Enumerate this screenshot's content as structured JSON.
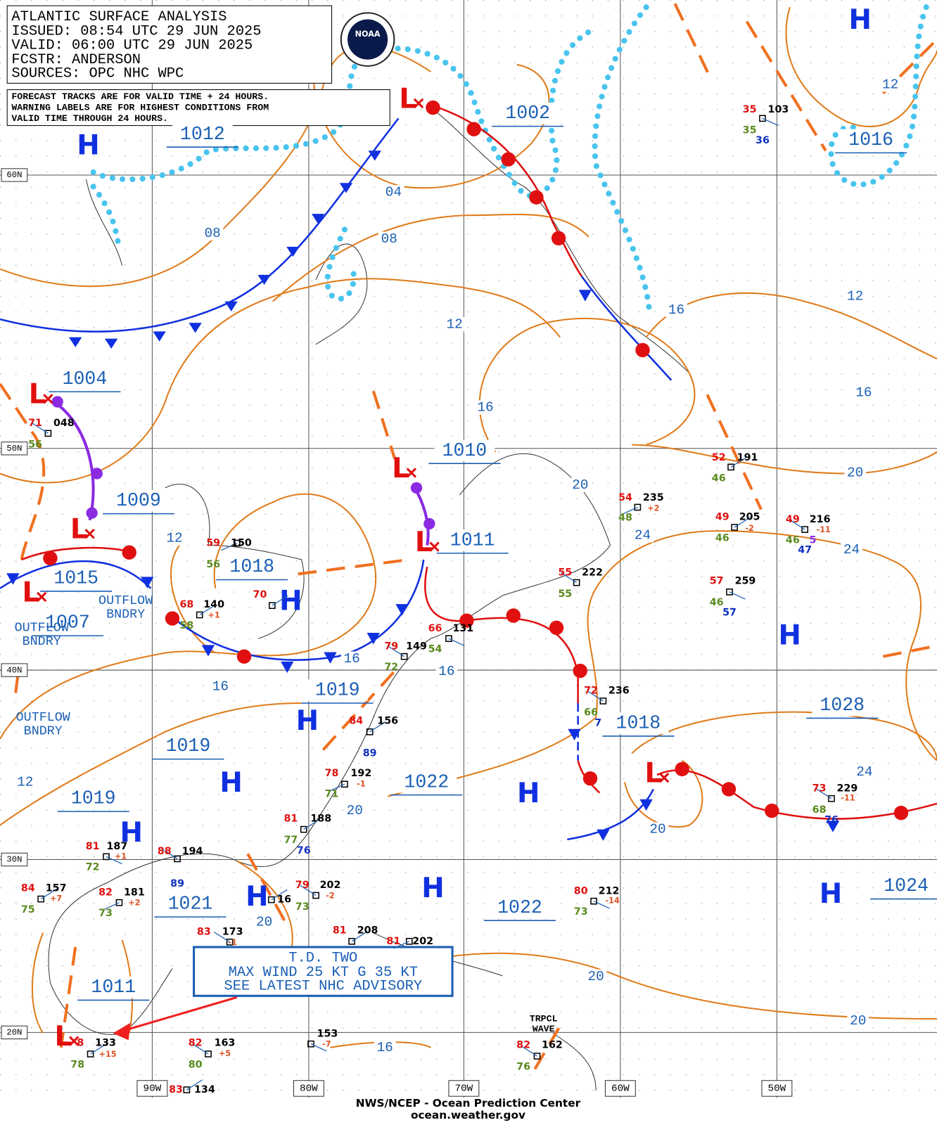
{
  "header": {
    "title": "ATLANTIC SURFACE ANALYSIS",
    "issued": "ISSUED: 08:54 UTC 29 JUN 2025",
    "valid": "VALID:  06:00 UTC 29 JUN 2025",
    "forecaster": "FCSTR:  ANDERSON",
    "sources": "SOURCES: OPC NHC WPC"
  },
  "note": [
    "FORECAST TRACKS ARE FOR VALID TIME + 24 HOURS.",
    "WARNING LABELS ARE FOR HIGHEST CONDITIONS FROM",
    "VALID TIME THROUGH 24 HOURS."
  ],
  "logo": "NOAA",
  "latitude_labels": [
    "60N",
    "50N",
    "40N",
    "30N",
    "20N"
  ],
  "longitude_labels": [
    "90W",
    "80W",
    "70W",
    "60W",
    "50W"
  ],
  "pressure_centers": [
    "1012",
    "1002",
    "1016",
    "1004",
    "1010",
    "1009",
    "1011",
    "1018",
    "1015",
    "1007",
    "1019",
    "1028",
    "1018",
    "1019",
    "1022",
    "1019",
    "1021",
    "1022",
    "1024",
    "1011"
  ],
  "isobar_labels": [
    "04",
    "08",
    "08",
    "12",
    "12",
    "16",
    "16",
    "16",
    "20",
    "12",
    "24",
    "20",
    "24",
    "16",
    "16",
    "16",
    "12",
    "20",
    "24",
    "20",
    "20",
    "20",
    "20",
    "16",
    "12"
  ],
  "highs": [
    "H",
    "H",
    "H",
    "H",
    "H",
    "H",
    "H",
    "H",
    "H",
    "H",
    "H"
  ],
  "lows": [
    "L",
    "L",
    "L",
    "L",
    "L",
    "L",
    "L",
    "L"
  ],
  "boundaries": [
    [
      "OUTFLOW",
      "BNDRY"
    ],
    [
      "OUTFLOW",
      "BNDRY"
    ],
    [
      "OUTFLOW",
      "BNDRY"
    ]
  ],
  "storm_box": [
    "T.D. TWO",
    "MAX WIND 25 KT G 35 KT",
    "SEE LATEST NHC ADVISORY"
  ],
  "tropical_wave": [
    "TRPCL",
    "WAVE"
  ],
  "stations": [
    [
      "35",
      "103",
      "35",
      "36"
    ],
    [
      "71",
      "048",
      "56"
    ],
    [
      "52",
      "191",
      "46"
    ],
    [
      "54",
      "235",
      "48",
      "+2"
    ],
    [
      "49",
      "205",
      "46",
      "-2"
    ],
    [
      "49",
      "216",
      "46",
      "5",
      "47",
      "-11"
    ],
    [
      "57",
      "259",
      "46",
      "57"
    ],
    [
      "55",
      "222",
      "55"
    ],
    [
      "70"
    ],
    [
      "59",
      "150",
      "56"
    ],
    [
      "68",
      "140",
      "58",
      "+1"
    ],
    [
      "79",
      "149",
      "72"
    ],
    [
      "66",
      "131",
      "54"
    ],
    [
      "72",
      "236",
      "66",
      "7"
    ],
    [
      "84",
      "156",
      "89"
    ],
    [
      "78",
      "192",
      "71",
      "-1"
    ],
    [
      "81",
      "188",
      "77",
      "76"
    ],
    [
      "73",
      "229",
      "68",
      "76",
      "-11"
    ],
    [
      "81",
      "187",
      "72",
      "+1"
    ],
    [
      "88",
      "194",
      "89"
    ],
    [
      "84",
      "157",
      "75",
      "+7"
    ],
    [
      "82",
      "181",
      "73",
      "+2"
    ],
    [
      "16"
    ],
    [
      "79",
      "202",
      "73",
      "-2"
    ],
    [
      "80",
      "212",
      "73",
      "-14"
    ],
    [
      "83",
      "173",
      "-1"
    ],
    [
      "81",
      "208"
    ],
    [
      "81",
      "202"
    ],
    [
      "8",
      "133",
      "78",
      "+15"
    ],
    [
      "82",
      "163",
      "80",
      "+5"
    ],
    [
      "153",
      "-7"
    ],
    [
      "82",
      "162",
      "76"
    ],
    [
      "83",
      "134"
    ]
  ],
  "footer": [
    "NWS/NCEP - Ocean Prediction Center",
    "ocean.weather.gov"
  ]
}
